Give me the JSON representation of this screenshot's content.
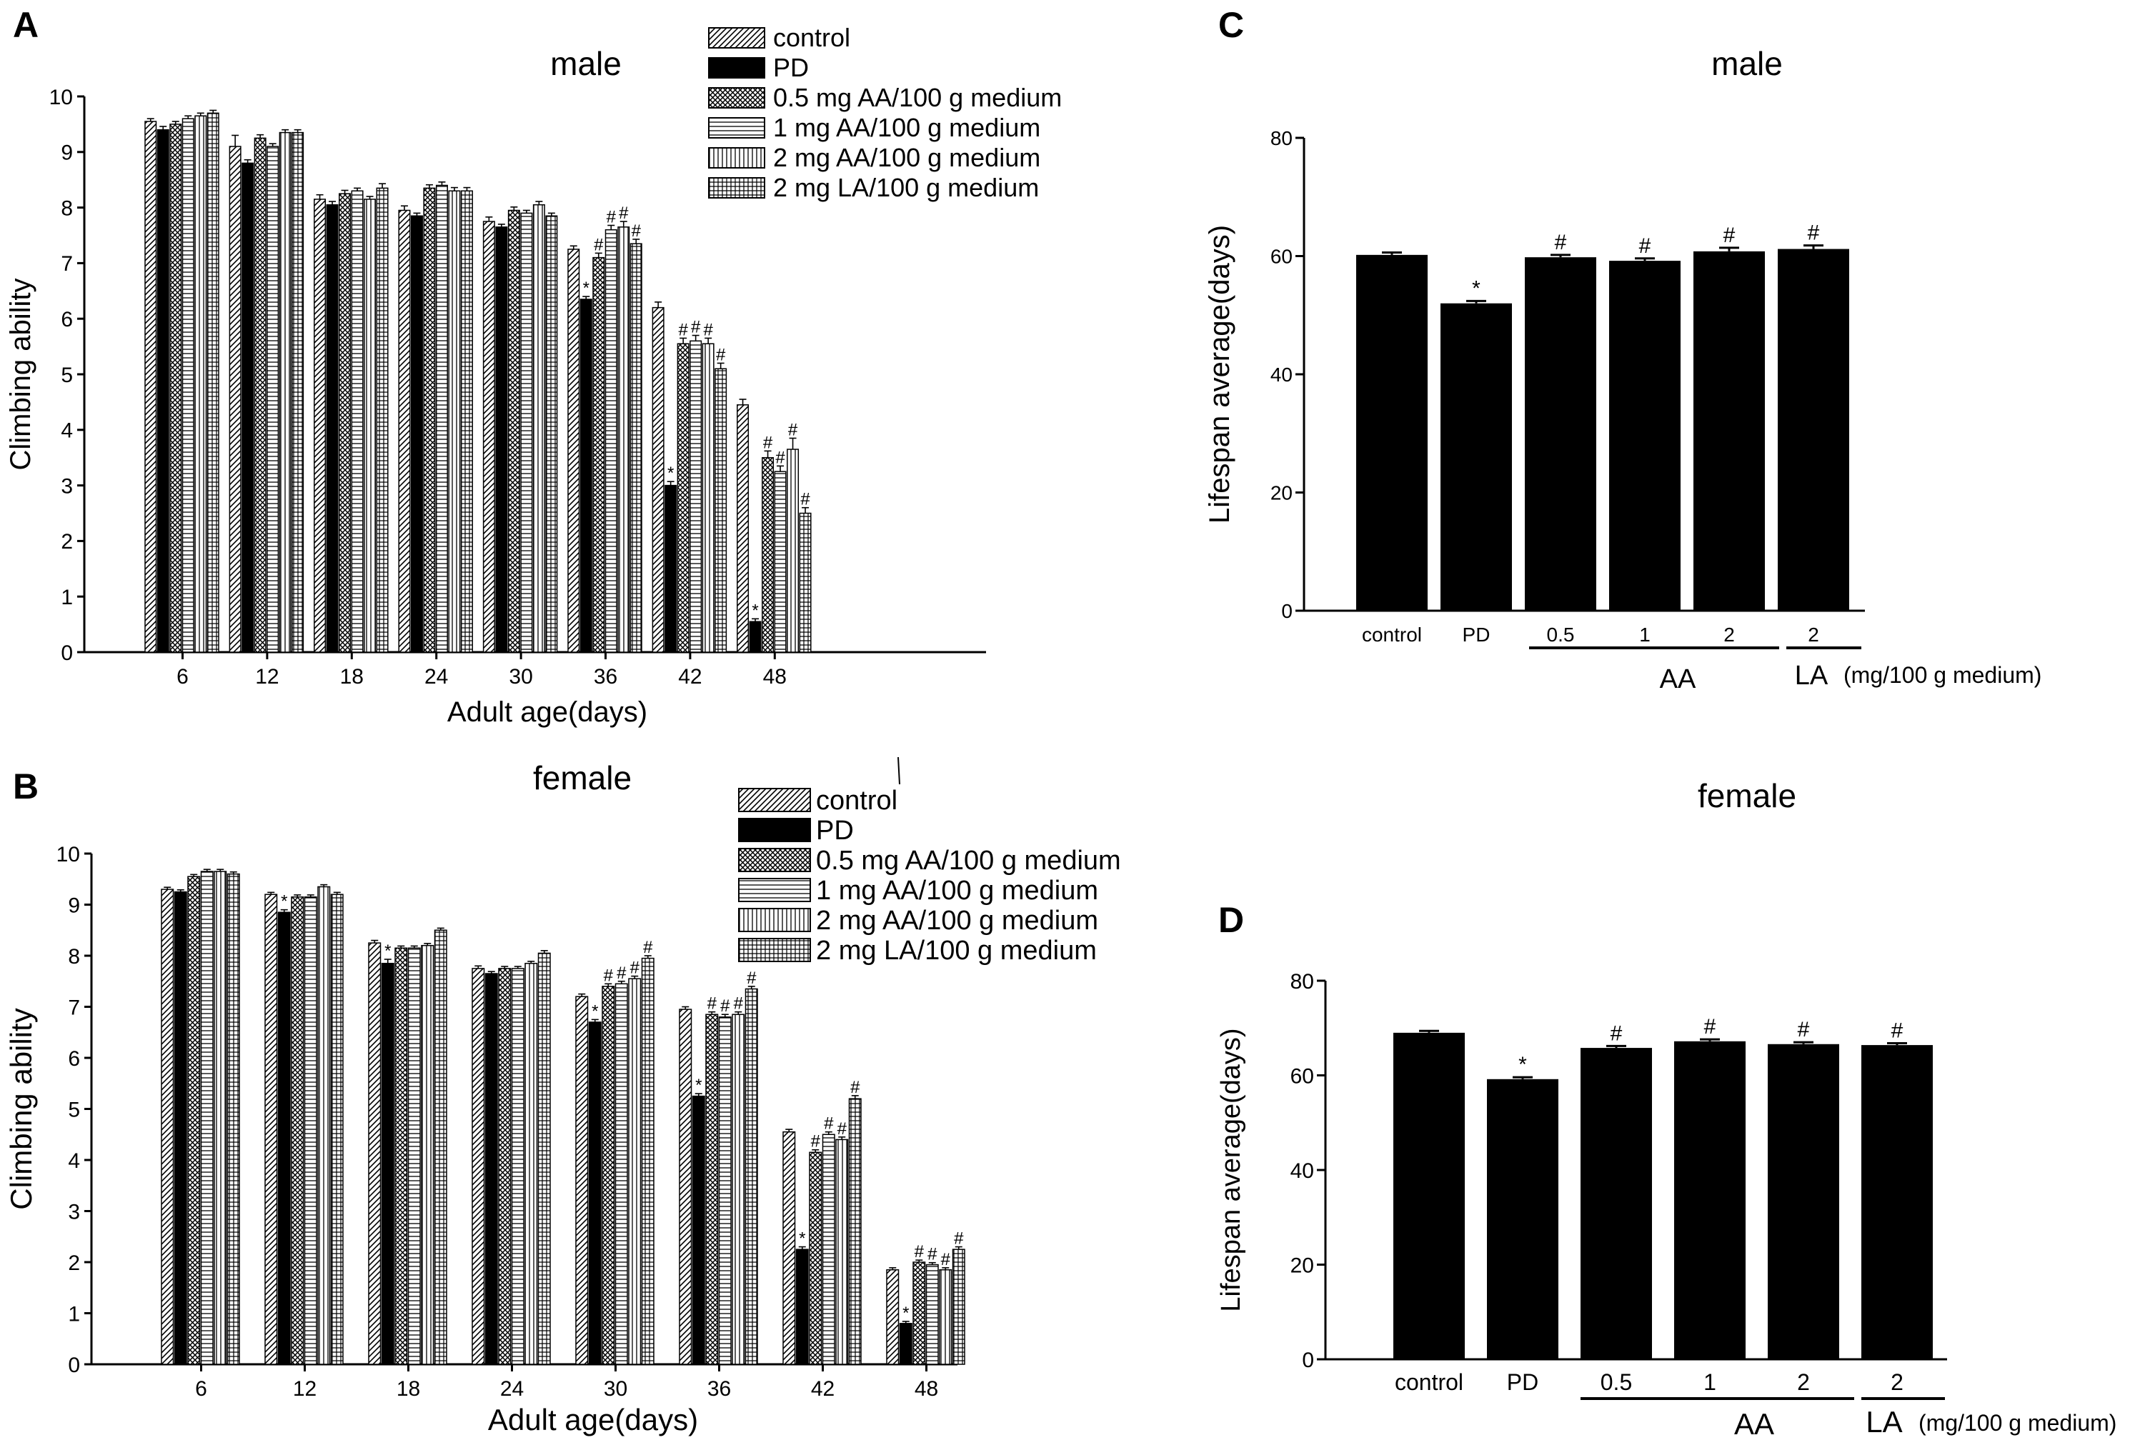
{
  "panels": {
    "A": {
      "letter": "A",
      "title": "male"
    },
    "B": {
      "letter": "B",
      "title": "female"
    },
    "C": {
      "letter": "C",
      "title": "male"
    },
    "D": {
      "letter": "D",
      "title": "female"
    }
  },
  "legend": [
    "control",
    "PD",
    "0.5 mg AA/100 g medium",
    "1 mg AA/100 g medium",
    "2 mg AA/100 g medium",
    "2 mg LA/100 g medium"
  ],
  "lifespan_group_labels": {
    "aa": "AA",
    "la": "LA",
    "unit": "(mg/100 g medium)"
  },
  "colors": {
    "bar": "#000000",
    "background": "#ffffff"
  },
  "chart_data": [
    {
      "id": "A",
      "type": "bar",
      "title": "male",
      "xlabel": "Adult age(days)",
      "ylabel": "Climbing ability",
      "ylim": [
        0,
        10
      ],
      "yticks": [
        "0",
        "1",
        "2",
        "3",
        "4",
        "5",
        "6",
        "7",
        "8",
        "9",
        "10"
      ],
      "categories": [
        "6",
        "12",
        "18",
        "24",
        "30",
        "36",
        "42",
        "48"
      ],
      "series": [
        {
          "name": "control",
          "values": [
            9.55,
            9.1,
            8.15,
            7.95,
            7.75,
            7.25,
            6.2,
            4.45
          ],
          "errors": [
            0.05,
            0.2,
            0.08,
            0.08,
            0.08,
            0.06,
            0.1,
            0.1
          ],
          "marks": [
            "",
            "",
            "",
            "",
            "",
            "",
            "",
            ""
          ]
        },
        {
          "name": "PD",
          "values": [
            9.4,
            8.8,
            8.05,
            7.85,
            7.65,
            6.35,
            3.0,
            0.55
          ],
          "errors": [
            0.06,
            0.06,
            0.06,
            0.05,
            0.05,
            0.05,
            0.07,
            0.05
          ],
          "marks": [
            "",
            "",
            "",
            "",
            "",
            "*",
            "*",
            "*"
          ]
        },
        {
          "name": "0.5 mg AA/100 g medium",
          "values": [
            9.5,
            9.25,
            8.25,
            8.35,
            7.95,
            7.1,
            5.55,
            3.5
          ],
          "errors": [
            0.05,
            0.06,
            0.06,
            0.06,
            0.06,
            0.08,
            0.1,
            0.12
          ],
          "marks": [
            "",
            "",
            "",
            "",
            "",
            "#",
            "#",
            "#"
          ]
        },
        {
          "name": "1 mg AA/100 g medium",
          "values": [
            9.6,
            9.1,
            8.3,
            8.4,
            7.9,
            7.6,
            5.6,
            3.25
          ],
          "errors": [
            0.05,
            0.05,
            0.05,
            0.06,
            0.05,
            0.08,
            0.1,
            0.1
          ],
          "marks": [
            "",
            "",
            "",
            "",
            "",
            "#",
            "#",
            "#"
          ]
        },
        {
          "name": "2 mg AA/100 g medium",
          "values": [
            9.65,
            9.35,
            8.15,
            8.3,
            8.05,
            7.65,
            5.55,
            3.65
          ],
          "errors": [
            0.05,
            0.05,
            0.05,
            0.06,
            0.06,
            0.1,
            0.1,
            0.2
          ],
          "marks": [
            "",
            "",
            "",
            "",
            "",
            "#",
            "#",
            "#"
          ]
        },
        {
          "name": "2 mg LA/100 g medium",
          "values": [
            9.7,
            9.35,
            8.35,
            8.3,
            7.85,
            7.35,
            5.1,
            2.5
          ],
          "errors": [
            0.05,
            0.05,
            0.08,
            0.06,
            0.05,
            0.08,
            0.1,
            0.1
          ],
          "marks": [
            "",
            "",
            "",
            "",
            "",
            "#",
            "#",
            "#"
          ]
        }
      ]
    },
    {
      "id": "B",
      "type": "bar",
      "title": "female",
      "xlabel": "Adult age(days)",
      "ylabel": "Climbing ability",
      "ylim": [
        0,
        10
      ],
      "yticks": [
        "0",
        "1",
        "2",
        "3",
        "4",
        "5",
        "6",
        "7",
        "8",
        "9",
        "10"
      ],
      "categories": [
        "6",
        "12",
        "18",
        "24",
        "30",
        "36",
        "42",
        "48"
      ],
      "series": [
        {
          "name": "control",
          "values": [
            9.3,
            9.2,
            8.25,
            7.75,
            7.2,
            6.95,
            4.55,
            1.85
          ],
          "errors": [
            0.04,
            0.04,
            0.05,
            0.05,
            0.05,
            0.05,
            0.05,
            0.04
          ],
          "marks": [
            "",
            "",
            "",
            "",
            "",
            "",
            "",
            ""
          ]
        },
        {
          "name": "PD",
          "values": [
            9.25,
            8.85,
            7.85,
            7.65,
            6.7,
            5.25,
            2.25,
            0.8
          ],
          "errors": [
            0.04,
            0.05,
            0.08,
            0.04,
            0.05,
            0.05,
            0.05,
            0.04
          ],
          "marks": [
            "",
            "*",
            "*",
            "",
            "*",
            "*",
            "*",
            "*"
          ]
        },
        {
          "name": "0.5 mg AA/100 g medium",
          "values": [
            9.55,
            9.15,
            8.15,
            7.75,
            7.4,
            6.85,
            4.15,
            2.0
          ],
          "errors": [
            0.04,
            0.04,
            0.04,
            0.04,
            0.05,
            0.05,
            0.05,
            0.04
          ],
          "marks": [
            "",
            "",
            "",
            "",
            "#",
            "#",
            "#",
            "#"
          ]
        },
        {
          "name": "1 mg AA/100 g medium",
          "values": [
            9.65,
            9.15,
            8.15,
            7.75,
            7.45,
            6.8,
            4.5,
            1.95
          ],
          "errors": [
            0.04,
            0.04,
            0.04,
            0.04,
            0.05,
            0.05,
            0.05,
            0.04
          ],
          "marks": [
            "",
            "",
            "",
            "",
            "#",
            "#",
            "#",
            "#"
          ]
        },
        {
          "name": "2 mg AA/100 g medium",
          "values": [
            9.65,
            9.35,
            8.2,
            7.85,
            7.55,
            6.85,
            4.4,
            1.85
          ],
          "errors": [
            0.04,
            0.04,
            0.04,
            0.04,
            0.05,
            0.05,
            0.05,
            0.04
          ],
          "marks": [
            "",
            "",
            "",
            "",
            "#",
            "#",
            "#",
            "#"
          ]
        },
        {
          "name": "2 mg LA/100 g medium",
          "values": [
            9.6,
            9.2,
            8.5,
            8.05,
            7.95,
            7.35,
            5.2,
            2.25
          ],
          "errors": [
            0.04,
            0.04,
            0.04,
            0.05,
            0.05,
            0.05,
            0.06,
            0.05
          ],
          "marks": [
            "",
            "",
            "",
            "",
            "#",
            "#",
            "#",
            "#"
          ]
        }
      ]
    },
    {
      "id": "C",
      "type": "bar",
      "title": "male",
      "ylabel": "Lifespan average(days)",
      "ylim": [
        0,
        80
      ],
      "yticks": [
        "0",
        "20",
        "40",
        "60",
        "80"
      ],
      "categories": [
        "control",
        "PD",
        "0.5",
        "1",
        "2",
        "2"
      ],
      "values": [
        60.2,
        52.0,
        59.8,
        59.2,
        60.8,
        61.2
      ],
      "errors": [
        0.4,
        0.4,
        0.4,
        0.4,
        0.6,
        0.6
      ],
      "marks": [
        "",
        "*",
        "#",
        "#",
        "#",
        "#"
      ]
    },
    {
      "id": "D",
      "type": "bar",
      "title": "female",
      "ylabel": "Lifespan average(days)",
      "ylim": [
        0,
        80
      ],
      "yticks": [
        "0",
        "20",
        "40",
        "60",
        "80"
      ],
      "categories": [
        "control",
        "PD",
        "0.5",
        "1",
        "2",
        "2"
      ],
      "values": [
        69.0,
        59.2,
        65.8,
        67.2,
        66.6,
        66.4
      ],
      "errors": [
        0.4,
        0.4,
        0.4,
        0.4,
        0.4,
        0.4
      ],
      "marks": [
        "",
        "*",
        "#",
        "#",
        "#",
        "#"
      ]
    }
  ]
}
